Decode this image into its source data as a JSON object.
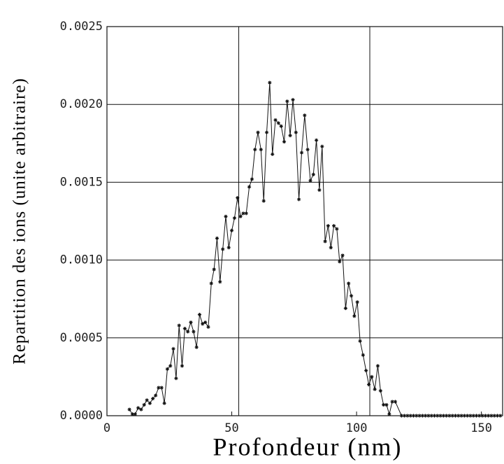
{
  "chart_data": {
    "type": "line",
    "x_label": "Profondeur (nm)",
    "y_label": "Repartition des ions (unite arbitraire)",
    "x": [
      9.0,
      10.2,
      11.3,
      12.5,
      13.7,
      14.9,
      16.0,
      17.2,
      18.4,
      19.5,
      20.7,
      21.9,
      23.0,
      24.2,
      25.4,
      26.6,
      27.7,
      28.9,
      30.1,
      31.2,
      32.4,
      33.6,
      34.7,
      35.9,
      37.1,
      38.3,
      39.4,
      40.6,
      41.8,
      42.9,
      44.1,
      45.3,
      46.4,
      47.6,
      48.8,
      50.0,
      51.1,
      52.3,
      53.5,
      54.6,
      55.8,
      57.0,
      58.1,
      59.3,
      60.5,
      61.7,
      62.8,
      64.0,
      65.2,
      66.3,
      67.5,
      68.7,
      69.8,
      71.0,
      72.2,
      73.4,
      74.5,
      75.7,
      76.9,
      78.0,
      79.2,
      80.4,
      81.5,
      82.7,
      83.9,
      85.1,
      86.2,
      87.4,
      88.6,
      89.7,
      90.9,
      92.1,
      93.2,
      94.4,
      95.6,
      96.8,
      97.9,
      99.1,
      100.3,
      101.4,
      102.6,
      103.8,
      104.9,
      106.1,
      107.3,
      108.5,
      109.6,
      110.8,
      112.0,
      113.1,
      114.3,
      115.5,
      118,
      119.2,
      120.4,
      121.6,
      122.8,
      124,
      125.2,
      126.4,
      127.6,
      128.8,
      130,
      131.2,
      132.4,
      133.6,
      134.8,
      136,
      137.2,
      138.4,
      139.6,
      140.8,
      142,
      143.2,
      144.4,
      145.6,
      146.8,
      148,
      149.2,
      150.4,
      151.6,
      152.8,
      154,
      155.2,
      156.4,
      157.6
    ],
    "series": [
      {
        "color": "#111111",
        "values": [
          4e-05,
          1e-05,
          1e-05,
          5e-05,
          4e-05,
          7e-05,
          0.0001,
          8e-05,
          0.00011,
          0.00013,
          0.00018,
          0.00018,
          8e-05,
          0.0003,
          0.00032,
          0.00043,
          0.00024,
          0.00058,
          0.00032,
          0.00056,
          0.00054,
          0.0006,
          0.00054,
          0.00044,
          0.00065,
          0.00059,
          0.0006,
          0.00057,
          0.00085,
          0.00094,
          0.00114,
          0.00086,
          0.00107,
          0.00128,
          0.00108,
          0.00119,
          0.00127,
          0.0014,
          0.00128,
          0.0013,
          0.0013,
          0.00147,
          0.00152,
          0.00171,
          0.00182,
          0.00171,
          0.00138,
          0.00182,
          0.00214,
          0.00168,
          0.0019,
          0.00188,
          0.00186,
          0.00176,
          0.00202,
          0.0018,
          0.00203,
          0.00182,
          0.00139,
          0.00169,
          0.00193,
          0.00171,
          0.00151,
          0.00155,
          0.00177,
          0.00145,
          0.00173,
          0.00112,
          0.00122,
          0.00108,
          0.00122,
          0.0012,
          0.00099,
          0.00103,
          0.00069,
          0.00085,
          0.00077,
          0.00064,
          0.00073,
          0.00048,
          0.00039,
          0.00029,
          0.0002,
          0.00025,
          0.00017,
          0.00032,
          0.00016,
          7e-05,
          7e-05,
          1e-05,
          9e-05,
          9e-05,
          0,
          0,
          0,
          0,
          0,
          0,
          0,
          0,
          0,
          0,
          0,
          0,
          0,
          0,
          0,
          0,
          0,
          0,
          0,
          0,
          0,
          0,
          0,
          0,
          0,
          0,
          0,
          0,
          0,
          0,
          0,
          0,
          0,
          0
        ]
      }
    ],
    "xlim": [
      0,
      158.5
    ],
    "ylim": [
      0,
      0.0025
    ],
    "xticks": [
      0,
      50,
      100,
      150
    ],
    "yticks": [
      {
        "value": 0,
        "label": "0.0000"
      },
      0.0005,
      {
        "value": 0.001,
        "label": "0.0010"
      },
      0.0015,
      {
        "value": 0.002,
        "label": "0.0020"
      },
      0.0025
    ],
    "xgrid_lines": [
      52.8,
      105.3
    ],
    "grid": true
  }
}
